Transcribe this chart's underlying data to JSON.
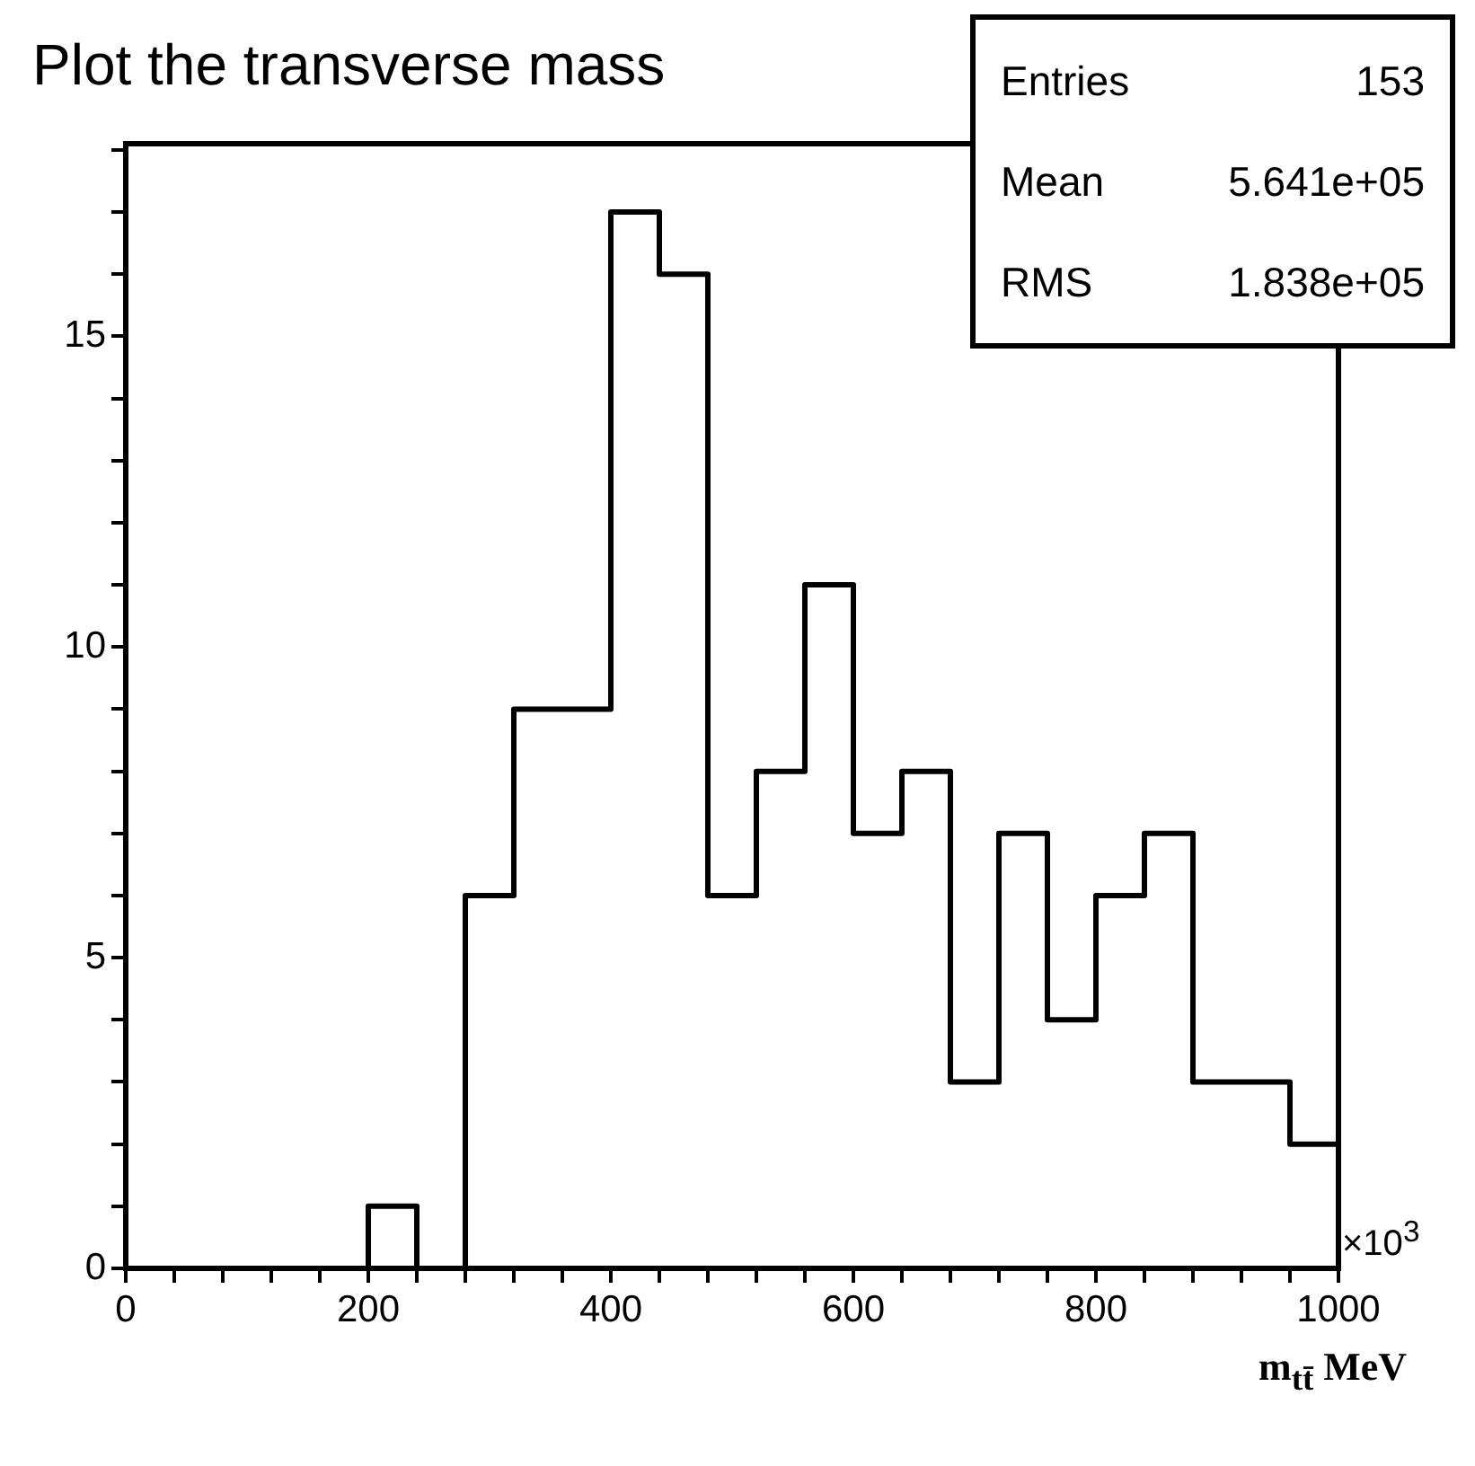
{
  "chart_data": {
    "type": "histogram",
    "title": "Plot the transverse mass",
    "xlabel": "m$_{tt̄}$ MeV",
    "bins": [
      0,
      40,
      80,
      120,
      160,
      200,
      240,
      280,
      320,
      360,
      400,
      440,
      480,
      520,
      560,
      600,
      640,
      680,
      720,
      760,
      800,
      840,
      880,
      920,
      960,
      1000
    ],
    "values": [
      0,
      0,
      0,
      0,
      0,
      1,
      0,
      6,
      9,
      9,
      17,
      16,
      6,
      8,
      11,
      7,
      8,
      3,
      7,
      4,
      6,
      7,
      3,
      3,
      2
    ],
    "color": "#000000",
    "xlim": [
      0,
      1000
    ],
    "xticks": [
      0,
      {
        "value": 40,
        "label": null
      },
      {
        "value": 80,
        "label": null
      },
      {
        "value": 120,
        "label": null
      },
      {
        "value": 160,
        "label": null
      },
      200,
      {
        "value": 240,
        "label": null
      },
      {
        "value": 280,
        "label": null
      },
      {
        "value": 320,
        "label": null
      },
      {
        "value": 360,
        "label": null
      },
      400,
      {
        "value": 440,
        "label": null
      },
      {
        "value": 480,
        "label": null
      },
      {
        "value": 520,
        "label": null
      },
      {
        "value": 560,
        "label": null
      },
      600,
      {
        "value": 640,
        "label": null
      },
      {
        "value": 680,
        "label": null
      },
      {
        "value": 720,
        "label": null
      },
      {
        "value": 760,
        "label": null
      },
      800,
      {
        "value": 840,
        "label": null
      },
      {
        "value": 880,
        "label": null
      },
      {
        "value": 920,
        "label": null
      },
      {
        "value": 960,
        "label": null
      },
      1000
    ],
    "ylim": [
      0,
      18.1
    ],
    "yticks": [
      0,
      {
        "value": 1,
        "label": null
      },
      {
        "value": 2,
        "label": null
      },
      {
        "value": 3,
        "label": null
      },
      {
        "value": 4,
        "label": null
      },
      5,
      {
        "value": 6,
        "label": null
      },
      {
        "value": 7,
        "label": null
      },
      {
        "value": 8,
        "label": null
      },
      {
        "value": 9,
        "label": null
      },
      10,
      {
        "value": 11,
        "label": null
      },
      {
        "value": 12,
        "label": null
      },
      {
        "value": 13,
        "label": null
      },
      {
        "value": 14,
        "label": null
      },
      15,
      {
        "value": 16,
        "label": null
      },
      {
        "value": 17,
        "label": null
      },
      {
        "value": 18,
        "label": null
      }
    ],
    "annotations": [
      "Entries 153",
      "Mean 5.641e+05",
      "RMS 1.838e+05",
      "×10$^{3}$"
    ]
  }
}
